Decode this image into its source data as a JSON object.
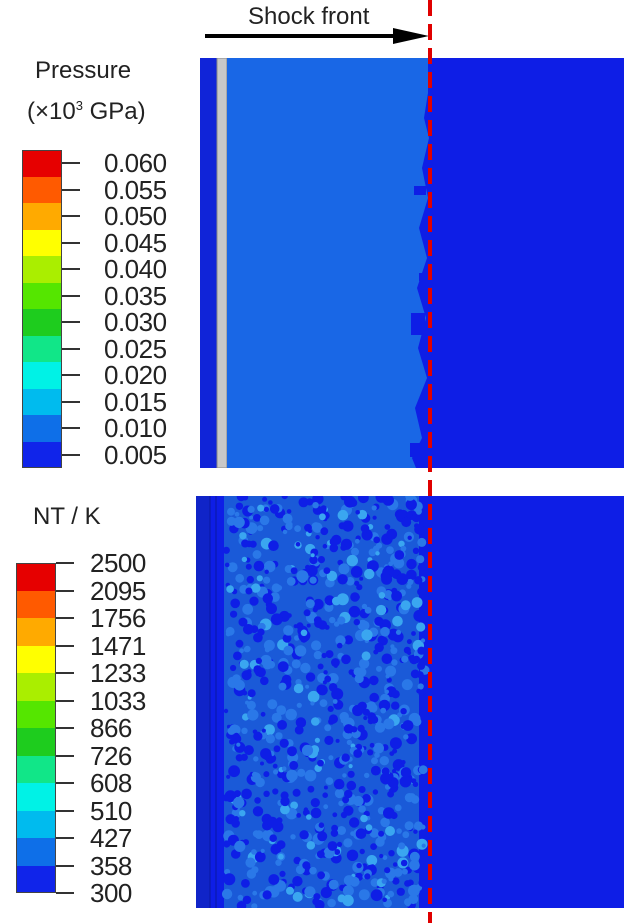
{
  "header": {
    "shock_label": "Shock front"
  },
  "pressure_legend": {
    "title_line1": "Pressure",
    "title_prefix": "(×10",
    "title_exp": "3",
    "title_suffix": " GPa)",
    "labels": [
      "0.060",
      "0.055",
      "0.050",
      "0.045",
      "0.040",
      "0.035",
      "0.030",
      "0.025",
      "0.020",
      "0.015",
      "0.010",
      "0.005"
    ]
  },
  "temperature_legend": {
    "title": "NT / K",
    "labels": [
      "2500",
      "2095",
      "1756",
      "1471",
      "1233",
      "1033",
      "866",
      "726",
      "608",
      "510",
      "427",
      "358",
      "300"
    ]
  },
  "colormap": [
    "#e60000",
    "#ff5a00",
    "#ffaa00",
    "#ffff00",
    "#aaee00",
    "#55e600",
    "#1ecc1e",
    "#11e688",
    "#00f2e6",
    "#00bbee",
    "#0e6fe8",
    "#1024ea"
  ],
  "colors": {
    "background_blue": "#0e1ee6",
    "compressed_blue": "#1967e6",
    "shock_line": "#e00000"
  }
}
